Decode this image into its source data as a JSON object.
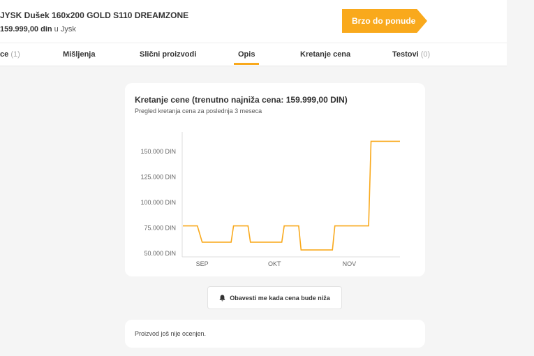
{
  "product": {
    "title": "JYSK Dušek 160x200 GOLD S110 DREAMZONE",
    "price": "159.999,00 din",
    "store": "u Jysk"
  },
  "cta": {
    "label": "Brzo do ponude"
  },
  "tabs": [
    {
      "label": "ce",
      "count": "(1)"
    },
    {
      "label": "Mišljenja"
    },
    {
      "label": "Slični proizvodi"
    },
    {
      "label": "Opis",
      "active": true
    },
    {
      "label": "Kretanje cena"
    },
    {
      "label": "Testovi",
      "count": "(0)"
    }
  ],
  "colors": {
    "accent": "#f9a91c"
  },
  "chart_data": {
    "type": "line",
    "title": "Kretanje cene (trenutno najniža cena: 159.999,00 DIN)",
    "subtitle": "Pregled kretanja cena za poslednja 3 meseca",
    "x_ticks": [
      "SEP",
      "OKT",
      "NOV"
    ],
    "y_ticks": [
      "50.000 DIN",
      "75.000 DIN",
      "100.000 DIN",
      "125.000 DIN",
      "150.000 DIN"
    ],
    "y_tick_values": [
      50000,
      75000,
      100000,
      125000,
      150000
    ],
    "ylim": [
      48000,
      165000
    ],
    "xlim": [
      "08-24",
      "11-22"
    ],
    "series": [
      {
        "points": [
          [
            "08-24",
            77000
          ],
          [
            "08-30",
            77000
          ],
          [
            "09-01",
            61000
          ],
          [
            "09-13",
            61000
          ],
          [
            "09-14",
            77000
          ],
          [
            "09-20",
            77000
          ],
          [
            "09-21",
            61000
          ],
          [
            "10-04",
            61000
          ],
          [
            "10-05",
            77000
          ],
          [
            "10-11",
            77000
          ],
          [
            "10-12",
            53400
          ],
          [
            "10-25",
            53400
          ],
          [
            "10-26",
            77000
          ],
          [
            "11-09",
            77000
          ],
          [
            "11-10",
            159999
          ],
          [
            "11-22",
            159999
          ]
        ]
      }
    ],
    "grid": false
  },
  "notify": {
    "label": "Obavesti me kada cena bude niža",
    "icon": "bell-icon"
  },
  "rating": {
    "text": "Proizvod još nije ocenjen."
  }
}
